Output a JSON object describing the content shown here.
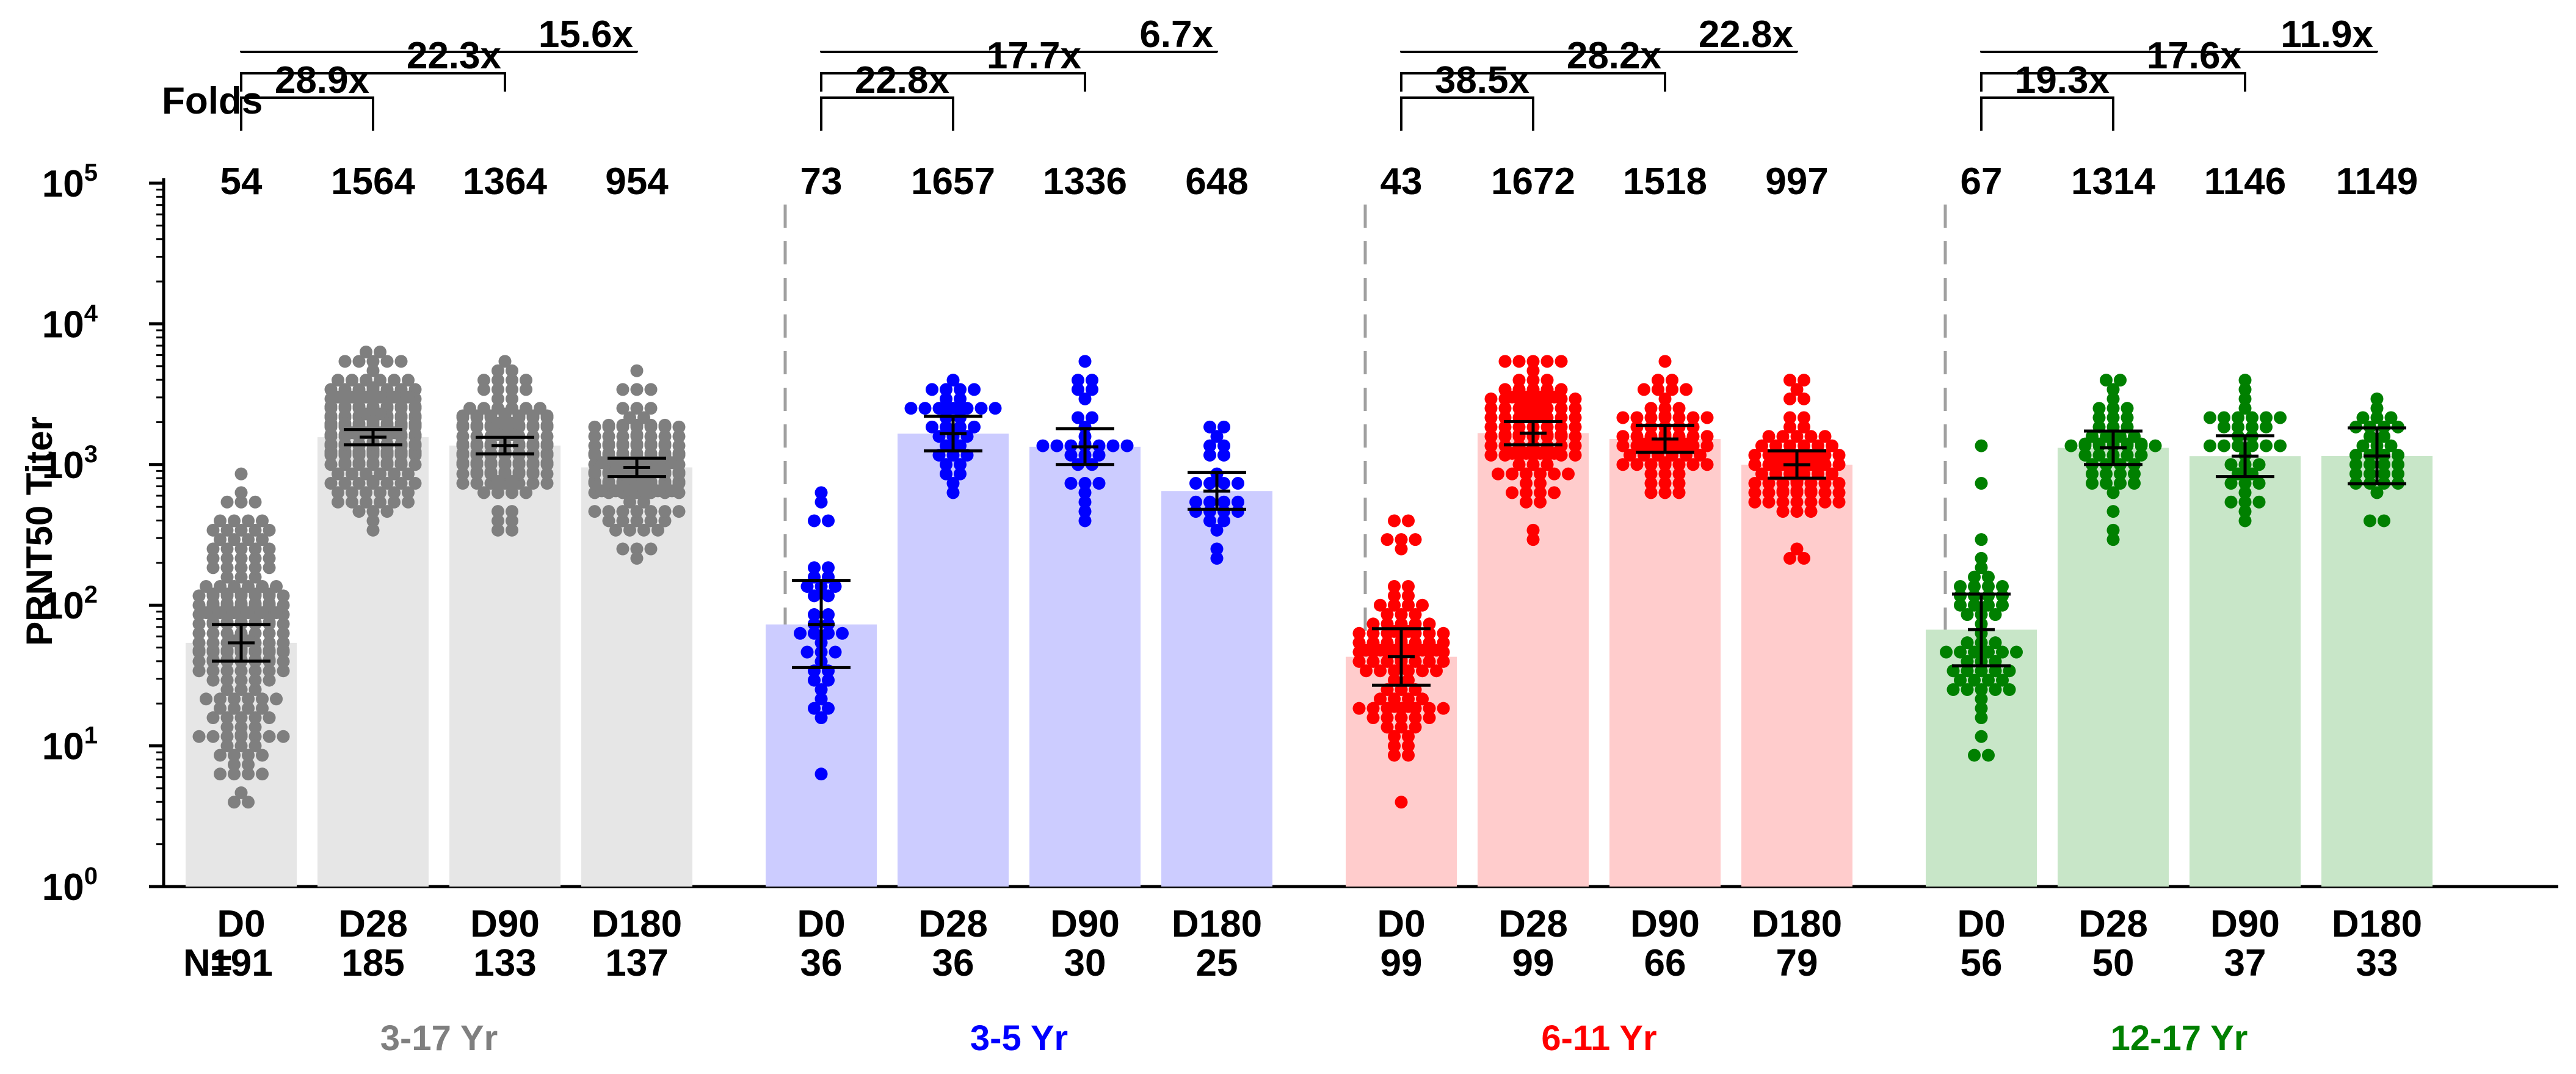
{
  "chart_data": {
    "type": "bar",
    "title": "",
    "ylabel": "PRNT50 Titer",
    "xlabel": "",
    "yscale": "log",
    "ylim": [
      1,
      100000
    ],
    "y_ticks": [
      {
        "value": 1,
        "base": "10",
        "exp": "0"
      },
      {
        "value": 10,
        "base": "10",
        "exp": "1"
      },
      {
        "value": 100,
        "base": "10",
        "exp": "2"
      },
      {
        "value": 1000,
        "base": "10",
        "exp": "3"
      },
      {
        "value": 10000,
        "base": "10",
        "exp": "4"
      },
      {
        "value": 100000,
        "base": "10",
        "exp": "5"
      }
    ],
    "folds_label": "Folds",
    "n_label": "N=",
    "groups": [
      {
        "name": "3-17 Yr",
        "color": "#7f7f7f",
        "bar_color": "#e6e6e6",
        "timepoints": [
          "D0",
          "D28",
          "D90",
          "D180"
        ],
        "gmt": [
          54,
          1564,
          1364,
          954
        ],
        "gmt_labels": [
          "54",
          "1564",
          "1364",
          "954"
        ],
        "n": [
          "191",
          "185",
          "133",
          "137"
        ],
        "ci": [
          [
            40,
            73
          ],
          [
            1380,
            1770
          ],
          [
            1190,
            1560
          ],
          [
            820,
            1110
          ]
        ],
        "folds": [
          {
            "from": 0,
            "to": 1,
            "label": "28.9x"
          },
          {
            "from": 0,
            "to": 2,
            "label": "22.3x"
          },
          {
            "from": 0,
            "to": 3,
            "label": "15.6x"
          }
        ]
      },
      {
        "name": "3-5 Yr",
        "color": "#0000ff",
        "bar_color": "#ccccff",
        "timepoints": [
          "D0",
          "D28",
          "D90",
          "D180"
        ],
        "gmt": [
          73,
          1657,
          1336,
          648
        ],
        "gmt_labels": [
          "73",
          "1657",
          "1336",
          "648"
        ],
        "n": [
          "36",
          "36",
          "30",
          "25"
        ],
        "ci": [
          [
            36,
            150
          ],
          [
            1250,
            2200
          ],
          [
            1000,
            1800
          ],
          [
            480,
            880
          ]
        ],
        "folds": [
          {
            "from": 0,
            "to": 1,
            "label": "22.8x"
          },
          {
            "from": 0,
            "to": 2,
            "label": "17.7x"
          },
          {
            "from": 0,
            "to": 3,
            "label": "6.7x"
          }
        ]
      },
      {
        "name": "6-11 Yr",
        "color": "#ff0000",
        "bar_color": "#ffcccc",
        "timepoints": [
          "D0",
          "D28",
          "D90",
          "D180"
        ],
        "gmt": [
          43,
          1672,
          1518,
          997
        ],
        "gmt_labels": [
          "43",
          "1672",
          "1518",
          "997"
        ],
        "n": [
          "99",
          "99",
          "66",
          "79"
        ],
        "ci": [
          [
            27,
            68
          ],
          [
            1380,
            2020
          ],
          [
            1220,
            1900
          ],
          [
            800,
            1250
          ]
        ],
        "folds": [
          {
            "from": 0,
            "to": 1,
            "label": "38.5x"
          },
          {
            "from": 0,
            "to": 2,
            "label": "28.2x"
          },
          {
            "from": 0,
            "to": 3,
            "label": "22.8x"
          }
        ]
      },
      {
        "name": "12-17 Yr",
        "color": "#008000",
        "bar_color": "#c8e6c8",
        "timepoints": [
          "D0",
          "D28",
          "D90",
          "D180"
        ],
        "gmt": [
          67,
          1314,
          1146,
          1149
        ],
        "gmt_labels": [
          "67",
          "1314",
          "1146",
          "1149"
        ],
        "n": [
          "56",
          "50",
          "37",
          "33"
        ],
        "ci": [
          [
            37,
            120
          ],
          [
            1000,
            1730
          ],
          [
            820,
            1600
          ],
          [
            730,
            1820
          ]
        ],
        "folds": [
          {
            "from": 0,
            "to": 1,
            "label": "19.3x"
          },
          {
            "from": 0,
            "to": 2,
            "label": "17.6x"
          },
          {
            "from": 0,
            "to": 3,
            "label": "11.9x"
          }
        ]
      }
    ]
  }
}
